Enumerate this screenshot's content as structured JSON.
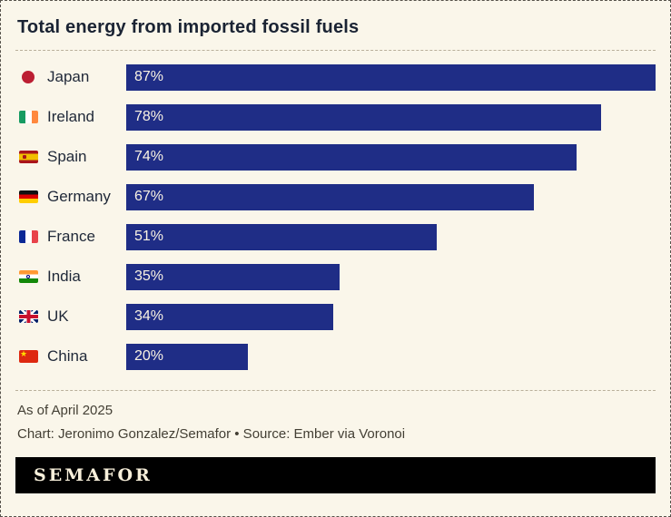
{
  "title": "Total energy from imported fossil fuels",
  "chart_data": {
    "type": "bar",
    "orientation": "horizontal",
    "title": "Total energy from imported fossil fuels",
    "categories": [
      "Japan",
      "Ireland",
      "Spain",
      "Germany",
      "France",
      "India",
      "UK",
      "China"
    ],
    "values": [
      87,
      78,
      74,
      67,
      51,
      35,
      34,
      20
    ],
    "value_labels": [
      "87%",
      "78%",
      "74%",
      "67%",
      "51%",
      "35%",
      "34%",
      "20%"
    ],
    "flags": [
      "japan",
      "ireland",
      "spain",
      "germany",
      "france",
      "india",
      "uk",
      "china"
    ],
    "unit": "%",
    "xlim": [
      0,
      87
    ],
    "grid": false,
    "legend": false,
    "bar_color": "#1f2d86",
    "bar_label_color": "#faf3e3"
  },
  "footer": {
    "as_of": "As of April 2025",
    "credit": "Chart: Jeronimo Gonzalez/Semafor • Source: Ember via Voronoi"
  },
  "brand": {
    "wordmark": "SEMAFOR"
  },
  "colors": {
    "background": "#faf6ea",
    "bar": "#1f2d86",
    "title_text": "#1a2333",
    "footnote_text": "#433f34",
    "banner_background": "#000000",
    "wordmark_text": "#f7efda"
  }
}
